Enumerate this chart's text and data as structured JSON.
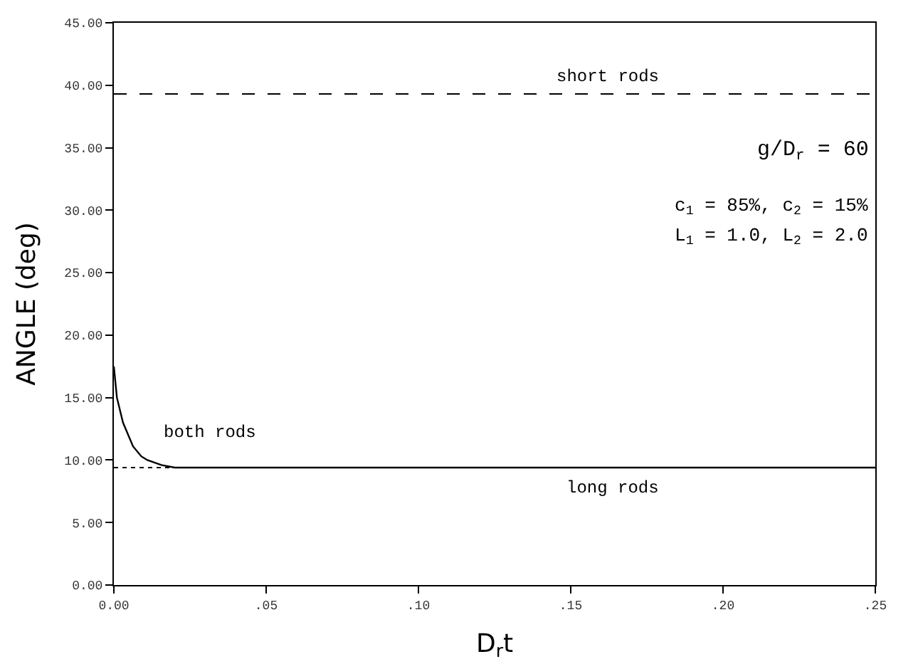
{
  "chart_data": {
    "type": "line",
    "xlabel": "D$_{r}$t",
    "ylabel": "ANGLE (deg)",
    "xlim": [
      0,
      0.25
    ],
    "ylim": [
      0,
      45
    ],
    "xticks": [
      {
        "value": 0,
        "label": "0.00"
      },
      {
        "value": 0.05,
        "label": ".05"
      },
      {
        "value": 0.1,
        "label": ".10"
      },
      {
        "value": 0.15,
        "label": ".15"
      },
      {
        "value": 0.2,
        "label": ".20"
      },
      {
        "value": 0.25,
        "label": ".25"
      }
    ],
    "yticks": [
      {
        "value": 0,
        "label": "0.00"
      },
      {
        "value": 5,
        "label": "5.00"
      },
      {
        "value": 10,
        "label": "10.00"
      },
      {
        "value": 15,
        "label": "15.00"
      },
      {
        "value": 20,
        "label": "20.00"
      },
      {
        "value": 25,
        "label": "25.00"
      },
      {
        "value": 30,
        "label": "30.00"
      },
      {
        "value": 35,
        "label": "35.00"
      },
      {
        "value": 40,
        "label": "40.00"
      },
      {
        "value": 45,
        "label": "45.00"
      }
    ],
    "legend": false,
    "marker": "none",
    "series": [
      {
        "name": "both rods",
        "color": "#000000",
        "x": [
          0,
          0.001,
          0.003,
          0.0063,
          0.009,
          0.011,
          0.0156,
          0.02,
          0.25
        ],
        "values": [
          17.5,
          15.0,
          13.0,
          11.1,
          10.3,
          10.0,
          9.6,
          9.4,
          9.4
        ]
      }
    ],
    "ref_lines": [
      {
        "axis": "y",
        "value": 39.3,
        "label": "short rods",
        "color": "#000000",
        "line_style": "dashed"
      },
      {
        "axis": "y",
        "value": 9.4,
        "label": "long rods",
        "color": "#000000",
        "line_style": "dotted"
      }
    ],
    "annotations": [
      "g/D$_{r}$ = 60",
      "c$_{1}$ = 85%, c$_{2}$ = 15%",
      "L$_{1}$ = 1.0, L$_{2}$ = 2.0"
    ]
  }
}
